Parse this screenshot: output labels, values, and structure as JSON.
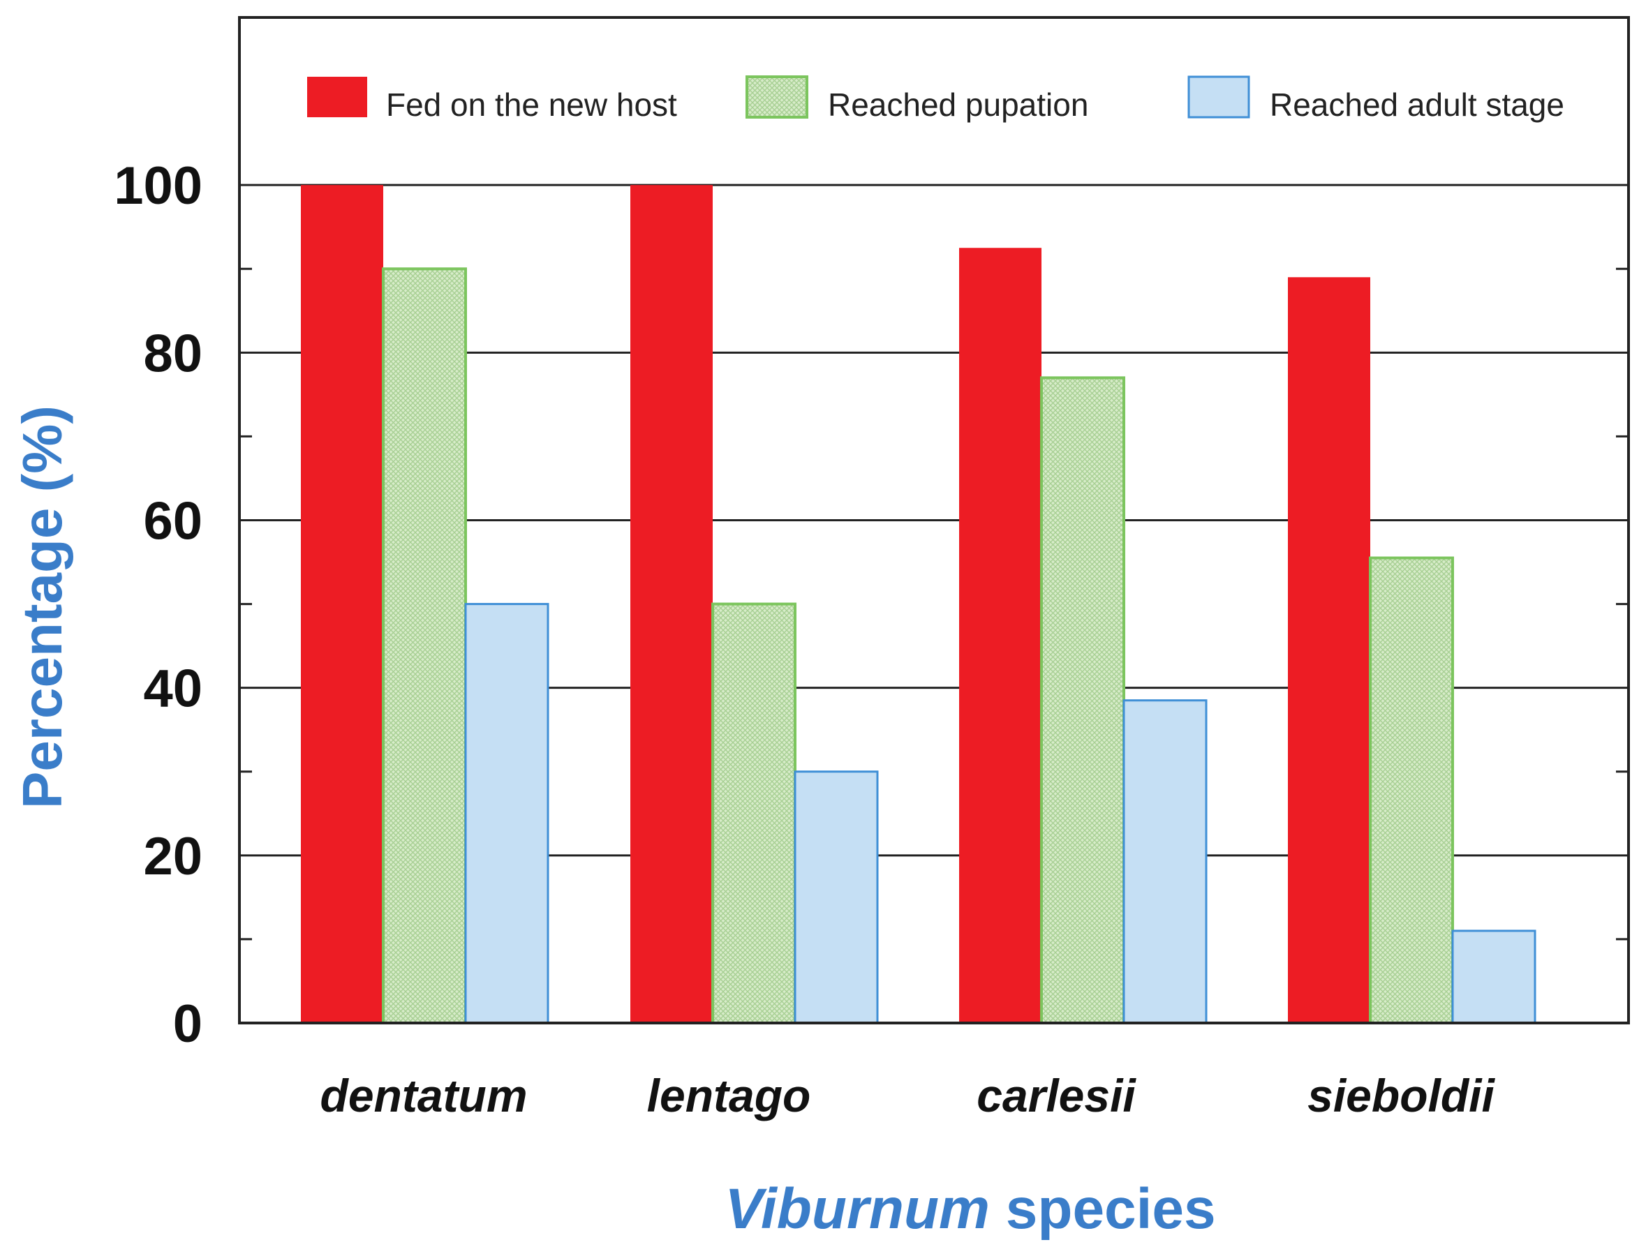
{
  "chart_data": {
    "type": "bar",
    "categories": [
      "dentatum",
      "lentago",
      "carlesii",
      "sieboldii"
    ],
    "series": [
      {
        "name": "Fed on the new host",
        "values": [
          100,
          100,
          92.5,
          89
        ],
        "color": "#ed1c24",
        "fill_style": "solid"
      },
      {
        "name": "Reached pupation",
        "values": [
          90,
          50,
          77,
          55.5
        ],
        "color": "#d7ecc9",
        "border_color": "#7cc55e",
        "fill_style": "crosshatch"
      },
      {
        "name": "Reached adult stage",
        "values": [
          50,
          30,
          38.5,
          11
        ],
        "color": "#c5dff4",
        "border_color": "#3f8fd6",
        "fill_style": "solid"
      }
    ],
    "ylim": [
      0,
      120
    ],
    "yticks": [
      0,
      20,
      40,
      60,
      80,
      100
    ],
    "ytick_labels": [
      "0",
      "20",
      "40",
      "60",
      "80",
      "100"
    ],
    "ylabel": "Percentage (%)",
    "xlabel_italic": "Viburnum",
    "xlabel_rest": " species",
    "grid": "horizontal",
    "legend_position": "top",
    "label_color": "#3a7dc9"
  }
}
